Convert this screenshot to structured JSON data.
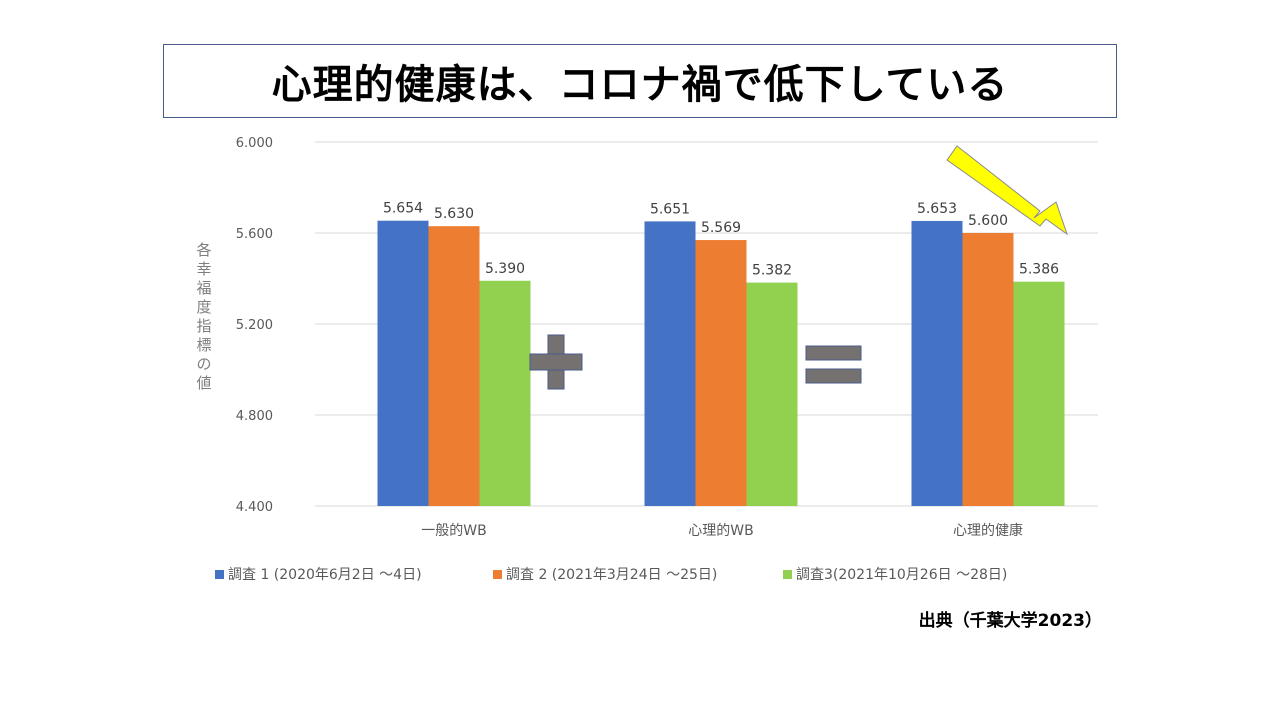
{
  "title": "心理的健康は、コロナ禍で低下している",
  "source": "出典（千葉大学2023）",
  "chart_data": {
    "type": "bar",
    "ylabel": "各幸福度指標の値",
    "xlabel": "",
    "ylim": [
      4.4,
      6.0
    ],
    "yticks": [
      "4.400",
      "4.800",
      "5.200",
      "5.600",
      "6.000"
    ],
    "grid": true,
    "legend_position": "bottom",
    "categories": [
      "一般的WB",
      "心理的WB",
      "心理的健康"
    ],
    "series": [
      {
        "name": "調査 1 (2020年6月2日 〜4日)",
        "color": "#4472c4",
        "values": [
          5.654,
          5.651,
          5.653
        ],
        "labels": [
          "5.654",
          "5.651",
          "5.653"
        ]
      },
      {
        "name": "調査 2 (2021年3月24日 〜25日)",
        "color": "#ed7d31",
        "values": [
          5.63,
          5.569,
          5.6
        ],
        "labels": [
          "5.630",
          "5.569",
          "5.600"
        ]
      },
      {
        "name": "調査3(2021年10月26日 〜28日)",
        "color": "#92d050",
        "values": [
          5.39,
          5.382,
          5.386
        ],
        "labels": [
          "5.390",
          "5.382",
          "5.386"
        ]
      }
    ],
    "annotations": {
      "plus_symbol": "+",
      "equals_symbol": "=",
      "symbol_color": "#767171",
      "arrow_color": "#ffff00"
    }
  }
}
